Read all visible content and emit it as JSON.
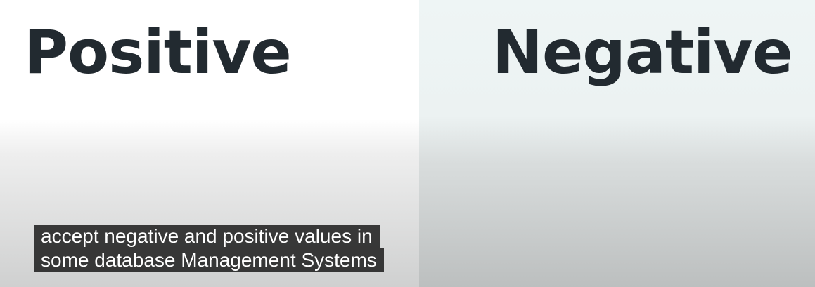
{
  "slide": {
    "left_word": "Positive",
    "right_word": "Negative"
  },
  "captions": {
    "line1": "accept negative and positive values in",
    "line2": "some database Management Systems"
  }
}
